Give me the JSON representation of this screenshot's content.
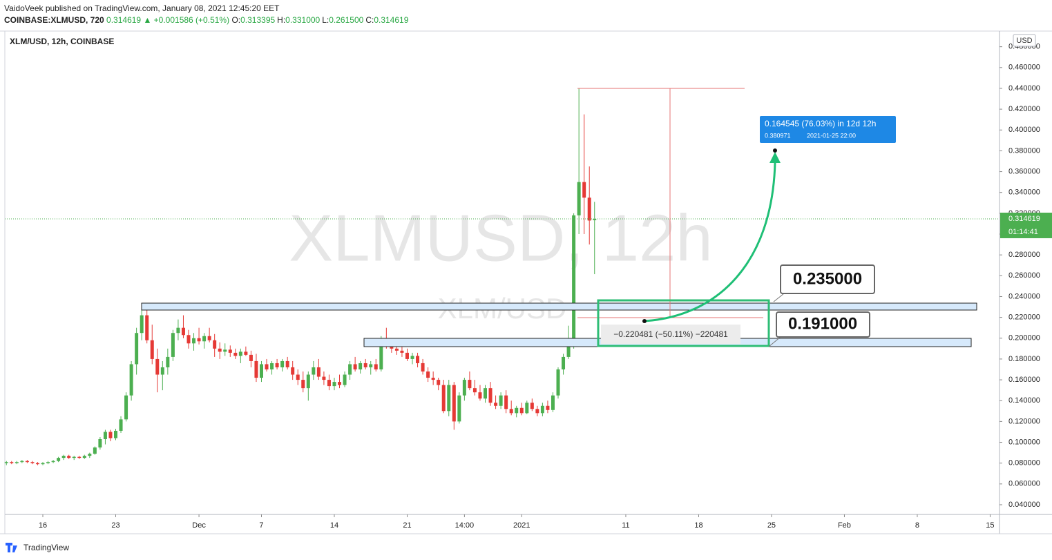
{
  "header": {
    "publisher": "VaidoVeek published on TradingView.com, January 08, 2021 12:45:20 EET",
    "symbol": "COINBASE:XLMUSD, 720",
    "last": "0.314619",
    "change": "▲ +0.001586 (+0.51%)",
    "ohlc_fields": [
      {
        "label": "O:",
        "value": "0.313395"
      },
      {
        "label": "H:",
        "value": "0.331000"
      },
      {
        "label": "L:",
        "value": "0.261500"
      },
      {
        "label": "C:",
        "value": "0.314619"
      }
    ]
  },
  "chart_data": {
    "type": "candlestick",
    "title": "XLM/USD, 12h, COINBASE",
    "watermark": "XLMUSD, 12h",
    "watermark_sub": "XLM/USD",
    "currency": "USD",
    "up_color": "#4caf50",
    "down_color": "#e53935",
    "last_price": 0.314619,
    "countdown": "01:14:41",
    "xlim": [
      -0.3,
      190.8
    ],
    "ylim": [
      0.0307,
      0.4937
    ],
    "xticks": [
      {
        "value": 7,
        "label": "16"
      },
      {
        "value": 21,
        "label": "23"
      },
      {
        "value": 37,
        "label": "Dec"
      },
      {
        "value": 49,
        "label": "7"
      },
      {
        "value": 63,
        "label": "14"
      },
      {
        "value": 77,
        "label": "21"
      },
      {
        "value": 88,
        "label": "14:00"
      },
      {
        "value": 99,
        "label": "2021"
      },
      {
        "value": 119,
        "label": "11"
      },
      {
        "value": 133,
        "label": "18"
      },
      {
        "value": 147,
        "label": "25"
      },
      {
        "value": 161,
        "label": "Feb"
      },
      {
        "value": 175,
        "label": "8"
      },
      {
        "value": 189,
        "label": "15"
      }
    ],
    "yticks": [
      {
        "value": 0.04,
        "label": "0.040000"
      },
      {
        "value": 0.06,
        "label": "0.060000"
      },
      {
        "value": 0.08,
        "label": "0.080000"
      },
      {
        "value": 0.1,
        "label": "0.100000"
      },
      {
        "value": 0.12,
        "label": "0.120000"
      },
      {
        "value": 0.14,
        "label": "0.140000"
      },
      {
        "value": 0.16,
        "label": "0.160000"
      },
      {
        "value": 0.18,
        "label": "0.180000"
      },
      {
        "value": 0.2,
        "label": "0.200000"
      },
      {
        "value": 0.22,
        "label": "0.220000"
      },
      {
        "value": 0.24,
        "label": "0.240000"
      },
      {
        "value": 0.26,
        "label": "0.260000"
      },
      {
        "value": 0.28,
        "label": "0.280000"
      },
      {
        "value": 0.3,
        "label": "0.300000"
      },
      {
        "value": 0.32,
        "label": "0.320000"
      },
      {
        "value": 0.34,
        "label": "0.340000"
      },
      {
        "value": 0.36,
        "label": "0.360000"
      },
      {
        "value": 0.38,
        "label": "0.380000"
      },
      {
        "value": 0.4,
        "label": "0.400000"
      },
      {
        "value": 0.42,
        "label": "0.420000"
      },
      {
        "value": 0.44,
        "label": "0.440000"
      },
      {
        "value": 0.46,
        "label": "0.460000"
      },
      {
        "value": 0.48,
        "label": "0.480000"
      }
    ],
    "ohlc": [
      [
        0.08,
        0.082,
        0.078,
        0.081
      ],
      [
        0.081,
        0.082,
        0.079,
        0.08
      ],
      [
        0.08,
        0.082,
        0.079,
        0.081
      ],
      [
        0.081,
        0.083,
        0.08,
        0.082
      ],
      [
        0.082,
        0.083,
        0.08,
        0.081
      ],
      [
        0.081,
        0.082,
        0.079,
        0.08
      ],
      [
        0.08,
        0.081,
        0.078,
        0.079
      ],
      [
        0.079,
        0.081,
        0.078,
        0.08
      ],
      [
        0.08,
        0.082,
        0.079,
        0.081
      ],
      [
        0.081,
        0.083,
        0.08,
        0.082
      ],
      [
        0.082,
        0.086,
        0.081,
        0.085
      ],
      [
        0.085,
        0.088,
        0.083,
        0.087
      ],
      [
        0.087,
        0.088,
        0.084,
        0.085
      ],
      [
        0.085,
        0.087,
        0.083,
        0.086
      ],
      [
        0.086,
        0.087,
        0.084,
        0.085
      ],
      [
        0.085,
        0.088,
        0.084,
        0.087
      ],
      [
        0.087,
        0.09,
        0.085,
        0.089
      ],
      [
        0.089,
        0.096,
        0.088,
        0.095
      ],
      [
        0.095,
        0.105,
        0.093,
        0.103
      ],
      [
        0.103,
        0.112,
        0.098,
        0.11
      ],
      [
        0.11,
        0.112,
        0.101,
        0.104
      ],
      [
        0.104,
        0.113,
        0.102,
        0.111
      ],
      [
        0.111,
        0.125,
        0.109,
        0.122
      ],
      [
        0.122,
        0.148,
        0.12,
        0.145
      ],
      [
        0.145,
        0.178,
        0.14,
        0.175
      ],
      [
        0.175,
        0.21,
        0.165,
        0.205
      ],
      [
        0.205,
        0.228,
        0.198,
        0.222
      ],
      [
        0.222,
        0.232,
        0.195,
        0.198
      ],
      [
        0.198,
        0.213,
        0.175,
        0.18
      ],
      [
        0.18,
        0.19,
        0.148,
        0.165
      ],
      [
        0.165,
        0.178,
        0.15,
        0.172
      ],
      [
        0.172,
        0.19,
        0.165,
        0.182
      ],
      [
        0.182,
        0.208,
        0.178,
        0.205
      ],
      [
        0.205,
        0.218,
        0.198,
        0.21
      ],
      [
        0.21,
        0.222,
        0.2,
        0.203
      ],
      [
        0.203,
        0.208,
        0.19,
        0.195
      ],
      [
        0.195,
        0.205,
        0.188,
        0.2
      ],
      [
        0.2,
        0.21,
        0.194,
        0.197
      ],
      [
        0.197,
        0.205,
        0.19,
        0.202
      ],
      [
        0.202,
        0.21,
        0.196,
        0.198
      ],
      [
        0.198,
        0.204,
        0.182,
        0.19
      ],
      [
        0.19,
        0.196,
        0.18,
        0.187
      ],
      [
        0.187,
        0.195,
        0.183,
        0.189
      ],
      [
        0.189,
        0.193,
        0.182,
        0.186
      ],
      [
        0.186,
        0.19,
        0.18,
        0.183
      ],
      [
        0.183,
        0.19,
        0.176,
        0.187
      ],
      [
        0.187,
        0.192,
        0.183,
        0.184
      ],
      [
        0.184,
        0.188,
        0.172,
        0.178
      ],
      [
        0.178,
        0.185,
        0.158,
        0.162
      ],
      [
        0.162,
        0.178,
        0.158,
        0.175
      ],
      [
        0.175,
        0.18,
        0.168,
        0.17
      ],
      [
        0.17,
        0.178,
        0.165,
        0.176
      ],
      [
        0.176,
        0.18,
        0.17,
        0.172
      ],
      [
        0.172,
        0.18,
        0.168,
        0.178
      ],
      [
        0.178,
        0.182,
        0.17,
        0.172
      ],
      [
        0.172,
        0.178,
        0.16,
        0.165
      ],
      [
        0.165,
        0.17,
        0.155,
        0.16
      ],
      [
        0.16,
        0.168,
        0.148,
        0.152
      ],
      [
        0.152,
        0.168,
        0.14,
        0.165
      ],
      [
        0.165,
        0.178,
        0.16,
        0.172
      ],
      [
        0.172,
        0.18,
        0.16,
        0.163
      ],
      [
        0.163,
        0.168,
        0.155,
        0.16
      ],
      [
        0.16,
        0.165,
        0.15,
        0.154
      ],
      [
        0.154,
        0.162,
        0.15,
        0.158
      ],
      [
        0.158,
        0.165,
        0.152,
        0.155
      ],
      [
        0.155,
        0.168,
        0.153,
        0.165
      ],
      [
        0.165,
        0.178,
        0.16,
        0.175
      ],
      [
        0.175,
        0.182,
        0.168,
        0.17
      ],
      [
        0.17,
        0.178,
        0.166,
        0.176
      ],
      [
        0.176,
        0.18,
        0.17,
        0.172
      ],
      [
        0.172,
        0.178,
        0.165,
        0.175
      ],
      [
        0.175,
        0.18,
        0.168,
        0.17
      ],
      [
        0.17,
        0.202,
        0.168,
        0.198
      ],
      [
        0.198,
        0.21,
        0.19,
        0.192
      ],
      [
        0.192,
        0.198,
        0.186,
        0.19
      ],
      [
        0.19,
        0.194,
        0.184,
        0.188
      ],
      [
        0.188,
        0.192,
        0.182,
        0.186
      ],
      [
        0.186,
        0.19,
        0.178,
        0.18
      ],
      [
        0.18,
        0.186,
        0.175,
        0.183
      ],
      [
        0.183,
        0.186,
        0.172,
        0.176
      ],
      [
        0.176,
        0.18,
        0.165,
        0.168
      ],
      [
        0.168,
        0.172,
        0.158,
        0.162
      ],
      [
        0.162,
        0.168,
        0.155,
        0.16
      ],
      [
        0.16,
        0.162,
        0.15,
        0.155
      ],
      [
        0.155,
        0.16,
        0.128,
        0.13
      ],
      [
        0.13,
        0.16,
        0.125,
        0.155
      ],
      [
        0.155,
        0.158,
        0.112,
        0.12
      ],
      [
        0.12,
        0.148,
        0.118,
        0.145
      ],
      [
        0.145,
        0.162,
        0.14,
        0.16
      ],
      [
        0.16,
        0.168,
        0.15,
        0.152
      ],
      [
        0.152,
        0.16,
        0.145,
        0.148
      ],
      [
        0.148,
        0.155,
        0.14,
        0.142
      ],
      [
        0.142,
        0.155,
        0.138,
        0.152
      ],
      [
        0.152,
        0.158,
        0.135,
        0.138
      ],
      [
        0.138,
        0.145,
        0.132,
        0.135
      ],
      [
        0.135,
        0.148,
        0.132,
        0.145
      ],
      [
        0.145,
        0.15,
        0.128,
        0.132
      ],
      [
        0.132,
        0.14,
        0.126,
        0.128
      ],
      [
        0.128,
        0.135,
        0.124,
        0.133
      ],
      [
        0.133,
        0.138,
        0.126,
        0.128
      ],
      [
        0.128,
        0.14,
        0.127,
        0.138
      ],
      [
        0.138,
        0.142,
        0.13,
        0.132
      ],
      [
        0.132,
        0.135,
        0.125,
        0.128
      ],
      [
        0.128,
        0.138,
        0.125,
        0.135
      ],
      [
        0.135,
        0.14,
        0.128,
        0.131
      ],
      [
        0.131,
        0.148,
        0.129,
        0.145
      ],
      [
        0.145,
        0.172,
        0.142,
        0.17
      ],
      [
        0.17,
        0.185,
        0.165,
        0.182
      ],
      [
        0.182,
        0.212,
        0.18,
        0.195
      ],
      [
        0.195,
        0.32,
        0.19,
        0.318
      ],
      [
        0.318,
        0.44,
        0.3,
        0.35
      ],
      [
        0.35,
        0.415,
        0.3,
        0.335
      ],
      [
        0.335,
        0.365,
        0.29,
        0.313
      ],
      [
        0.313395,
        0.331,
        0.2615,
        0.314619
      ]
    ]
  },
  "annotations": {
    "level_upper": "0.235000",
    "level_lower": "0.191000",
    "measure": "−0.220481 (−50.11%) −220481",
    "projection": "0.164545 (76.03%) in 12d 12h",
    "projection_price": "0.380971",
    "projection_time": "2021-01-25  22:00"
  },
  "footer": "TradingView"
}
